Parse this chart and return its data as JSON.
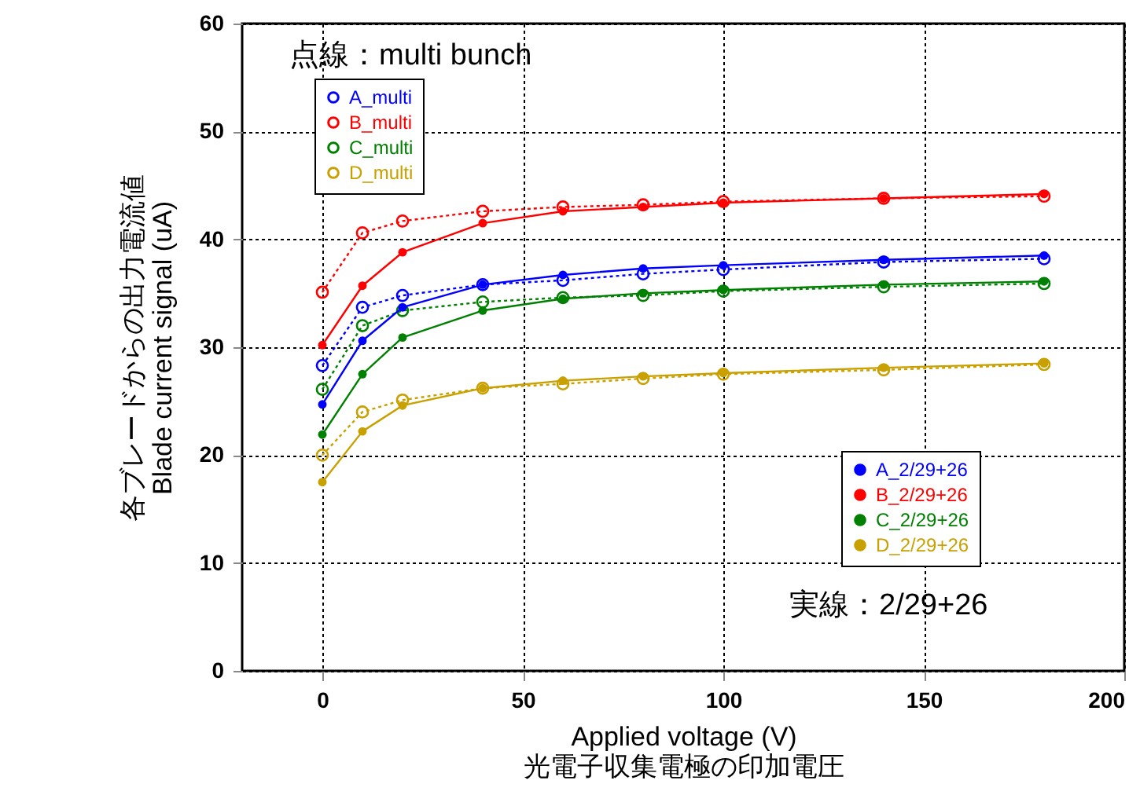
{
  "chart_data": {
    "type": "line",
    "xlabel": "Applied voltage (V)\n光電子収集電極の印加電圧",
    "ylabel": "各ブレードからの出力電流値\nBlade current signal (uA)",
    "x": [
      0,
      10,
      20,
      40,
      60,
      80,
      100,
      140,
      180
    ],
    "xlim": [
      -20,
      200
    ],
    "xticks": [
      0,
      50,
      100,
      150,
      200
    ],
    "ylim": [
      0,
      60
    ],
    "yticks": [
      0,
      10,
      20,
      30,
      40,
      50,
      60
    ],
    "grid": true,
    "legend": "top left",
    "marker": "circle",
    "annotations": [
      "点線：multi bunch",
      "実線：2/29+26"
    ],
    "series": [
      {
        "name": "A_multi",
        "color": "#0000ff",
        "line_style": "dotted",
        "values": [
          28.3,
          33.7,
          34.8,
          35.8,
          36.2,
          36.8,
          37.2,
          37.9,
          38.2
        ]
      },
      {
        "name": "B_multi",
        "color": "#ff0000",
        "line_style": "dotted",
        "values": [
          35.1,
          40.6,
          41.7,
          42.6,
          43.0,
          43.2,
          43.5,
          43.8,
          44.0
        ]
      },
      {
        "name": "C_multi",
        "color": "#008000",
        "line_style": "dotted",
        "values": [
          26.1,
          32.0,
          33.4,
          34.2,
          34.6,
          34.8,
          35.2,
          35.6,
          35.9
        ]
      },
      {
        "name": "D_multi",
        "color": "#c8a000",
        "line_style": "dotted",
        "values": [
          20.0,
          24.0,
          25.1,
          26.2,
          26.6,
          27.1,
          27.5,
          27.9,
          28.4
        ]
      },
      {
        "name": "A_2/29+26",
        "color": "#0000ff",
        "line_style": "solid",
        "values": [
          24.7,
          30.6,
          33.7,
          35.8,
          36.7,
          37.3,
          37.6,
          38.1,
          38.5
        ]
      },
      {
        "name": "B_2/29+26",
        "color": "#ff0000",
        "line_style": "solid",
        "values": [
          30.2,
          35.7,
          38.8,
          41.5,
          42.6,
          43.0,
          43.4,
          43.8,
          44.2
        ]
      },
      {
        "name": "C_2/29+26",
        "color": "#008000",
        "line_style": "solid",
        "values": [
          21.9,
          27.5,
          30.9,
          33.4,
          34.5,
          35.0,
          35.3,
          35.8,
          36.1
        ]
      },
      {
        "name": "D_2/29+26",
        "color": "#c8a000",
        "line_style": "solid",
        "values": [
          17.5,
          22.2,
          24.6,
          26.2,
          26.9,
          27.3,
          27.6,
          28.1,
          28.5
        ]
      }
    ]
  }
}
